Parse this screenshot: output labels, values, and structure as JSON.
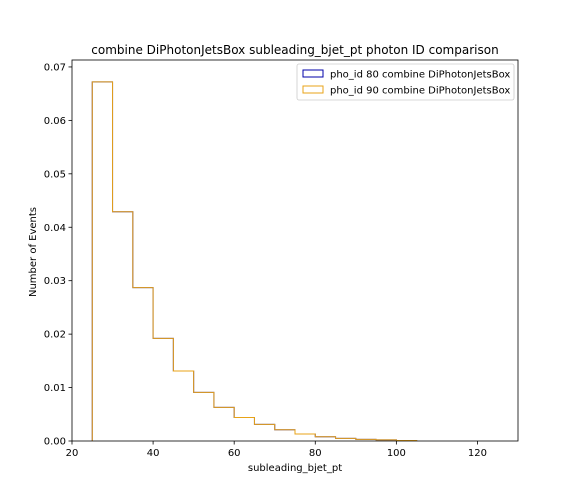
{
  "chart_data": {
    "type": "histogram",
    "title": "combine DiPhotonJetsBox subleading_bjet_pt photon ID comparison",
    "xlabel": "subleading_bjet_pt",
    "ylabel": "Number of Events",
    "xlim": [
      20,
      130
    ],
    "ylim": [
      0,
      0.0713
    ],
    "xticks": [
      20,
      40,
      60,
      80,
      100,
      120
    ],
    "yticks": [
      0.0,
      0.01,
      0.02,
      0.03,
      0.04,
      0.05,
      0.06,
      0.07
    ],
    "ytick_labels": [
      "0.00",
      "0.01",
      "0.02",
      "0.03",
      "0.04",
      "0.05",
      "0.06",
      "0.07"
    ],
    "bin_edges": [
      25,
      30,
      35,
      40,
      45,
      50,
      55,
      60,
      65,
      70,
      75,
      80,
      85,
      90,
      95,
      100,
      105
    ],
    "legend_position": "upper-right",
    "series": [
      {
        "name": "pho_id 80 combine DiPhotonJetsBox",
        "color": "#0000aa",
        "values": [
          0.0672,
          0.0429,
          0.0287,
          0.0192,
          0.0131,
          0.0091,
          0.0063,
          0.0044,
          0.0031,
          0.0021,
          0.0013,
          0.0008,
          0.0005,
          0.0003,
          0.0002,
          0.0001
        ]
      },
      {
        "name": "pho_id 90 combine DiPhotonJetsBox",
        "color": "#e8a317",
        "values": [
          0.0672,
          0.0429,
          0.0287,
          0.0192,
          0.0131,
          0.0091,
          0.0063,
          0.0044,
          0.0031,
          0.0021,
          0.0013,
          0.0008,
          0.0005,
          0.0003,
          0.0002,
          0.0001
        ]
      }
    ]
  }
}
